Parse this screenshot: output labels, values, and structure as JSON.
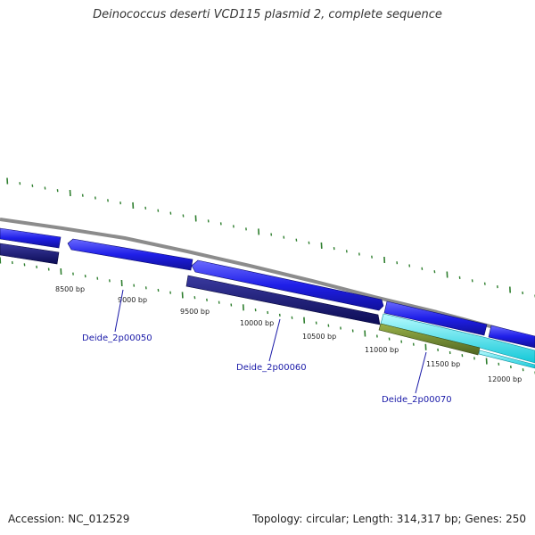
{
  "title": "Deinococcus deserti VCD115 plasmid 2, complete sequence",
  "footer": {
    "accession": "Accession: NC_012529",
    "summary": "Topology: circular; Length: 314,317 bp; Genes: 250"
  },
  "ticks": [
    "8500 bp",
    "9000 bp",
    "9500 bp",
    "10000 bp",
    "10500 bp",
    "11000 bp",
    "11500 bp",
    "12000 bp"
  ],
  "gene_labels": [
    "Deide_2p00050",
    "Deide_2p00060",
    "Deide_2p00070"
  ],
  "colors": {
    "backbone": "#8c8c8c",
    "forward_cds": "#1f1fe8",
    "reverse_cds": "#14147a",
    "cyan_feature": "#20e8f0",
    "olive_feature": "#6e8a2a",
    "tick_marks": "#2f7f2f"
  }
}
